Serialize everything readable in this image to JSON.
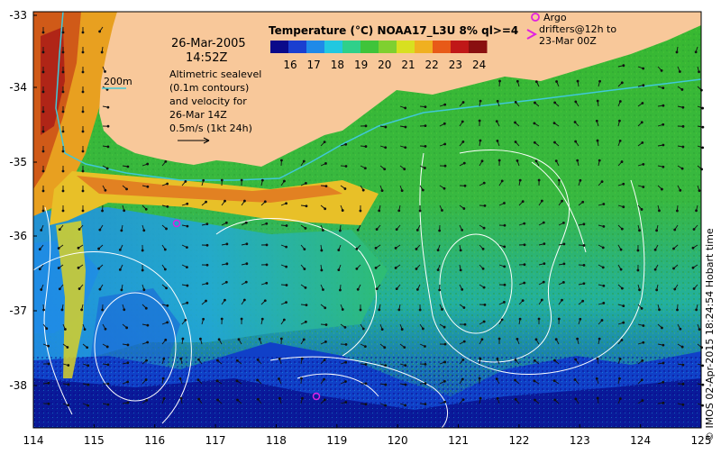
{
  "map": {
    "date": "26-Mar-2005",
    "time": "14:52Z",
    "colorbar": {
      "title": "Temperature (°C) NOAA17_L3U 8% ql>=4",
      "ticks": [
        "16",
        "17",
        "18",
        "19",
        "20",
        "21",
        "22",
        "23",
        "24"
      ],
      "colors": [
        "#0a0a8a",
        "#1a3fd0",
        "#1f8ae8",
        "#22c8e0",
        "#2fd08a",
        "#3fc43a",
        "#7fd030",
        "#d8e020",
        "#f0b020",
        "#e85a18",
        "#c01818",
        "#8a1010"
      ]
    },
    "depth_label": "200m",
    "sealevel_note": [
      "Altimetric sealevel",
      "(0.1m contours)",
      "and velocity for",
      "26-Mar 14Z",
      "0.5m/s (1kt 24h)"
    ],
    "legend": {
      "argo": "Argo",
      "drifters": [
        "drifters@12h to",
        "23-Mar 00Z"
      ]
    },
    "lat_ticks": [
      "-33",
      "-34",
      "-35",
      "-36",
      "-37",
      "-38"
    ],
    "lon_ticks": [
      "114",
      "115",
      "116",
      "117",
      "118",
      "119",
      "120",
      "121",
      "122",
      "123",
      "124",
      "125"
    ],
    "credit": "© IMOS 02-Apr-2015 18:24:54 Hobart time",
    "colors": {
      "land": "#f8c89a",
      "argo": "#e020e0",
      "shelf_contour": "#40c8d8",
      "contours": "#ffffff"
    }
  }
}
